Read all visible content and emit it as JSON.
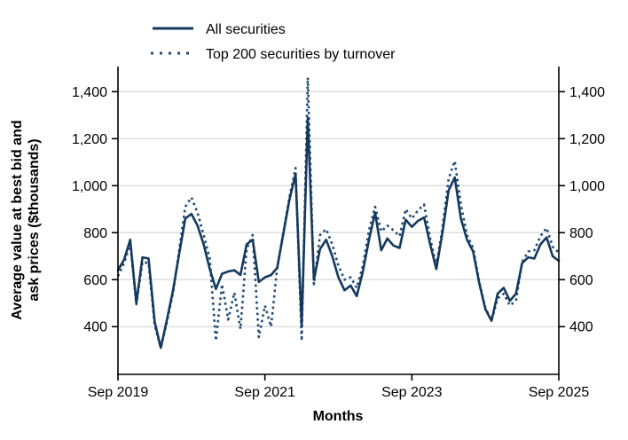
{
  "chart_data": {
    "type": "line",
    "title": "",
    "xlabel": "Months",
    "ylabel_line1": "Average value at best bid and",
    "ylabel_line2": "ask prices ($thousands)",
    "x_tick_labels": [
      "Sep 2019",
      "Sep 2021",
      "Sep 2023",
      "Sep 2025"
    ],
    "x_tick_month_index": [
      0,
      24,
      48,
      72
    ],
    "months_start": "Sep 2019",
    "months_end": "Sep 2025",
    "months_span": 72,
    "y_ticks": [
      400,
      600,
      800,
      1000,
      1200,
      1400
    ],
    "y_tick_labels": [
      "400",
      "600",
      "800",
      "1,000",
      "1,200",
      "1,400"
    ],
    "ylim": [
      197,
      1507
    ],
    "grid": "horizontal",
    "legend_position": "top-left",
    "legend": [
      {
        "label": "All securities",
        "style": "solid"
      },
      {
        "label": "Top 200 securities by turnover",
        "style": "dotted"
      }
    ],
    "colors": {
      "all_securities": "#14395e",
      "top200": "#1f4a75",
      "gridline": "#d9d9d9",
      "axis": "#000000"
    },
    "series": [
      {
        "name": "All securities",
        "values": [
          640,
          685,
          770,
          500,
          695,
          690,
          420,
          310,
          430,
          555,
          710,
          860,
          880,
          830,
          750,
          645,
          560,
          625,
          635,
          640,
          620,
          750,
          770,
          590,
          610,
          620,
          650,
          795,
          940,
          1050,
          405,
          1290,
          600,
          730,
          770,
          700,
          610,
          555,
          575,
          530,
          635,
          770,
          885,
          725,
          775,
          745,
          735,
          855,
          825,
          850,
          865,
          750,
          645,
          800,
          980,
          1035,
          860,
          770,
          720,
          585,
          475,
          425,
          540,
          565,
          510,
          540,
          670,
          695,
          690,
          750,
          780,
          700,
          680
        ]
      },
      {
        "name": "Top 200 securities by turnover",
        "values": [
          615,
          670,
          755,
          495,
          675,
          670,
          405,
          310,
          420,
          545,
          725,
          910,
          950,
          885,
          790,
          690,
          340,
          580,
          430,
          545,
          390,
          730,
          790,
          355,
          490,
          400,
          650,
          800,
          950,
          1075,
          340,
          1460,
          580,
          790,
          815,
          750,
          660,
          600,
          610,
          565,
          660,
          810,
          910,
          805,
          830,
          810,
          785,
          900,
          860,
          895,
          920,
          775,
          660,
          820,
          1030,
          1105,
          920,
          790,
          735,
          590,
          480,
          425,
          520,
          540,
          490,
          510,
          675,
          720,
          725,
          785,
          820,
          740,
          715
        ]
      }
    ]
  }
}
